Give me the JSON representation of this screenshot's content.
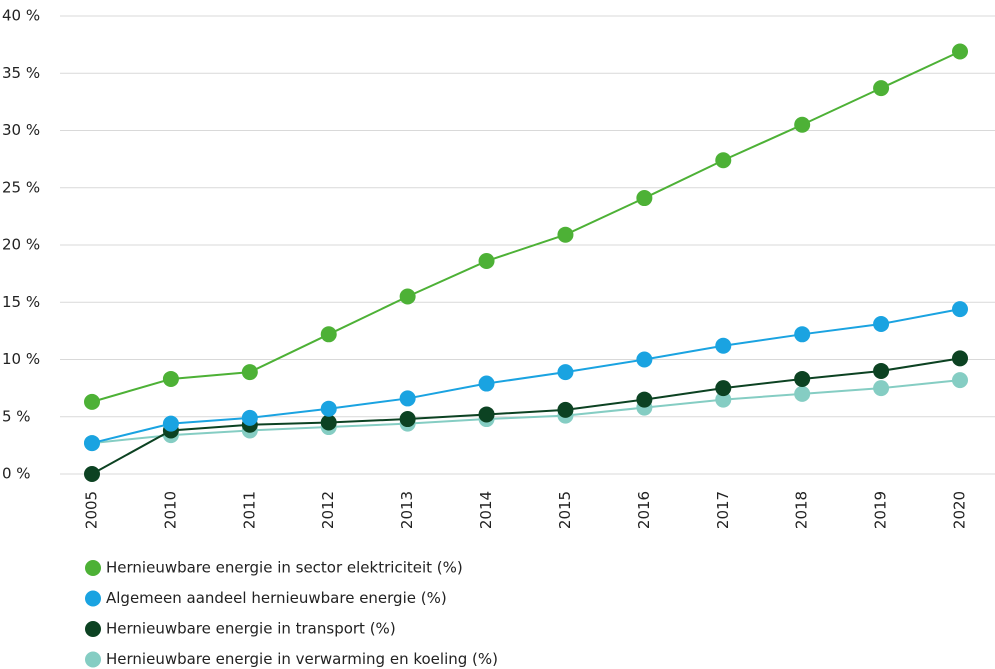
{
  "chart_data": {
    "type": "line",
    "categories": [
      "2005",
      "2010",
      "2011",
      "2012",
      "2013",
      "2014",
      "2015",
      "2016",
      "2017",
      "2018",
      "2019",
      "2020"
    ],
    "series": [
      {
        "name": "Hernieuwbare energie in verwarming en koeling (%)",
        "color": "#85cdc3",
        "values": [
          2.7,
          3.4,
          3.8,
          4.1,
          4.4,
          4.8,
          5.1,
          5.8,
          6.5,
          7.0,
          7.5,
          8.2
        ]
      },
      {
        "name": "Hernieuwbare energie in transport (%)",
        "color": "#0c4222",
        "values": [
          0,
          3.8,
          4.3,
          4.5,
          4.8,
          5.2,
          5.6,
          6.5,
          7.5,
          8.3,
          9.0,
          10.1
        ]
      },
      {
        "name": "Algemeen aandeel hernieuwbare energie (%)",
        "color": "#1aa3e1",
        "values": [
          2.7,
          4.4,
          4.9,
          5.7,
          6.6,
          7.9,
          8.9,
          10.0,
          11.2,
          12.2,
          13.1,
          14.4
        ]
      },
      {
        "name": "Hernieuwbare energie in sector elektriciteit (%)",
        "color": "#4db136",
        "values": [
          6.3,
          8.3,
          8.9,
          12.2,
          15.5,
          18.6,
          20.9,
          24.1,
          27.4,
          30.5,
          33.7,
          36.9
        ]
      }
    ],
    "ylim": [
      0,
      40
    ],
    "yticks": [
      {
        "value": 0,
        "label": "0 %"
      },
      {
        "value": 5,
        "label": "5 %"
      },
      {
        "value": 10,
        "label": "10 %"
      },
      {
        "value": 15,
        "label": "15 %"
      },
      {
        "value": 20,
        "label": "20 %"
      },
      {
        "value": 25,
        "label": "25 %"
      },
      {
        "value": 30,
        "label": "30 %"
      },
      {
        "value": 35,
        "label": "35 %"
      },
      {
        "value": 40,
        "label": "40 %"
      }
    ],
    "grid": true
  }
}
